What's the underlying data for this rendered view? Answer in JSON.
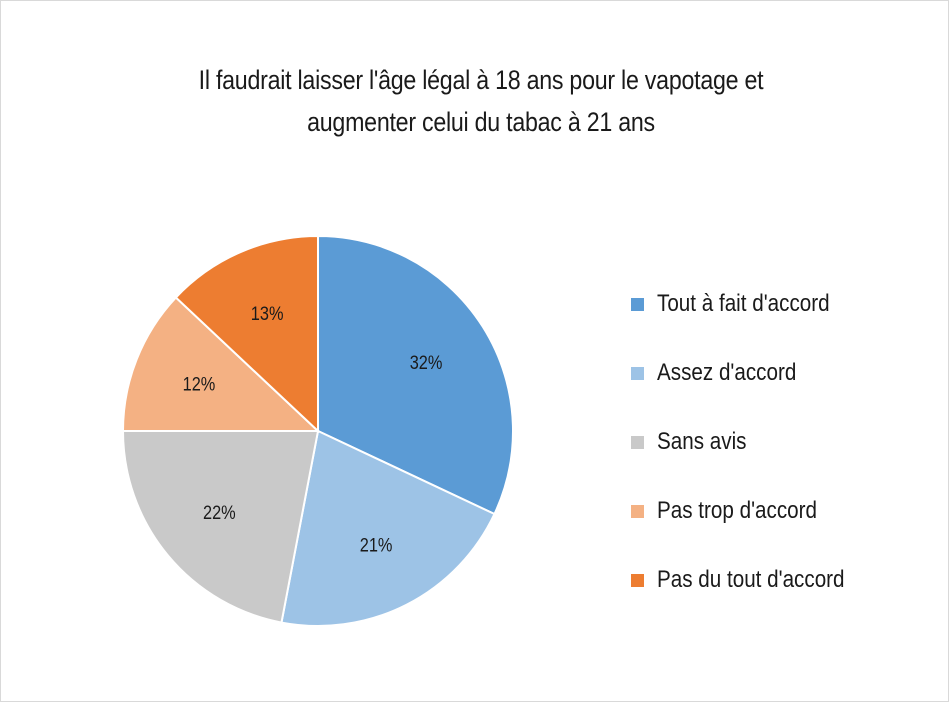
{
  "chart_data": {
    "type": "pie",
    "title_lines": [
      "Il faudrait laisser l'âge légal à 18 ans pour le vapotage et",
      "augmenter celui du tabac à 21 ans"
    ],
    "categories": [
      "Tout à fait d'accord",
      "Assez d'accord",
      "Sans avis",
      "Pas trop d'accord",
      "Pas du tout d'accord"
    ],
    "values": [
      32,
      21,
      22,
      12,
      13
    ],
    "data_labels": [
      "32%",
      "21%",
      "22%",
      "12%",
      "13%"
    ],
    "colors": [
      "#5B9BD5",
      "#9DC3E6",
      "#C9C9C9",
      "#F4B183",
      "#ED7D31"
    ],
    "legend_position": "right"
  }
}
